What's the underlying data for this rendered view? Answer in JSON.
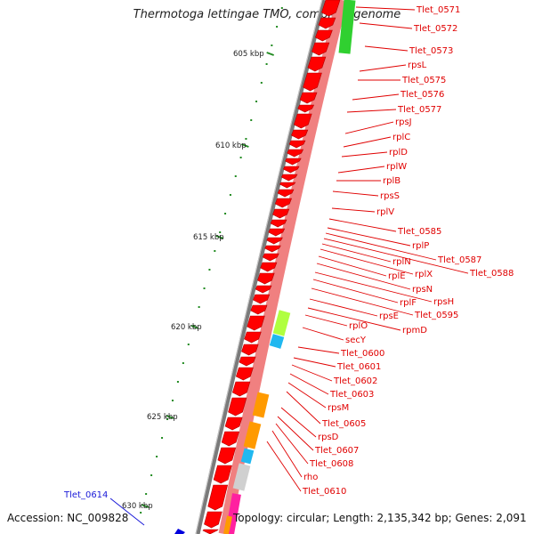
{
  "title": "Thermotoga lettingae TMO, complete genome",
  "accession_text": "Accession: NC_009828",
  "topology_text": "Topology: circular; Length: 2,135,342 bp; Genes: 2,091",
  "colors": {
    "forward_strand": "#ff0000",
    "reverse_strand_pink": "#f08080",
    "label_red": "#e00000",
    "label_blue": "#1a1ad8",
    "tick_green": "#228b22",
    "backbone_gray": "#808080",
    "lime": "#b0ff40",
    "cyan": "#20b8f0",
    "orange": "#ff9a00",
    "bright_green": "#30d030"
  },
  "ruler_labels": [
    "605 kbp",
    "610 kbp",
    "615 kbp",
    "620 kbp",
    "625 kbp",
    "630 kbp"
  ],
  "gene_labels": [
    "Tlet_0571",
    "Tlet_0572",
    "Tlet_0573",
    "rpsL",
    "Tlet_0575",
    "Tlet_0576",
    "Tlet_0577",
    "rpsJ",
    "rplC",
    "rplD",
    "rplW",
    "rplB",
    "rpsS",
    "rplV",
    "Tlet_0585",
    "rplP",
    "Tlet_0587",
    "Tlet_0588",
    "rplN",
    "rplX",
    "rplE",
    "rpsN",
    "rpsH",
    "rplF",
    "Tlet_0595",
    "rpsE",
    "rpmD",
    "rplO",
    "secY",
    "Tlet_0600",
    "Tlet_0601",
    "Tlet_0602",
    "Tlet_0603",
    "rpsM",
    "Tlet_0605",
    "rpsD",
    "Tlet_0607",
    "Tlet_0608",
    "rho",
    "Tlet_0610"
  ],
  "left_gene_label": "Tlet_0614"
}
